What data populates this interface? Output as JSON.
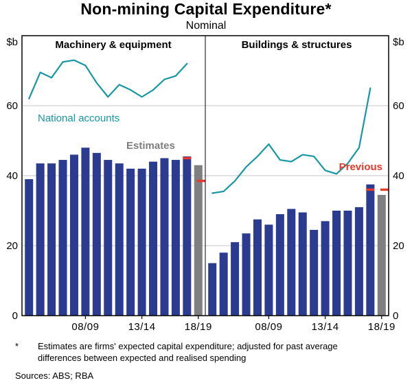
{
  "title": "Non-mining Capital Expenditure*",
  "subtitle": "Nominal",
  "unit_label": "$b",
  "footnote": {
    "marker": "*",
    "text": "Estimates are firms' expected capital expenditure; adjusted for past average differences between expected and realised spending"
  },
  "sources": "Sources: ABS; RBA",
  "colors": {
    "bar": "#2a3b90",
    "estimate_bar": "#7f7f7f",
    "line": "#1796a4",
    "previous": "#e8392d",
    "grid": "#c6c6c6",
    "frame": "#000000"
  },
  "axis": {
    "ymin": 0,
    "ymax": 80,
    "yticks": [
      0,
      20,
      40,
      60
    ],
    "gridlines": [
      20,
      40,
      60
    ],
    "xticks": {
      "positions": [
        5,
        10,
        15
      ],
      "labels": [
        "08/09",
        "13/14",
        "18/19"
      ]
    }
  },
  "chart_data": [
    {
      "type": "bar+line",
      "panel_title": "Machinery & equipment",
      "years": [
        "03/04",
        "04/05",
        "05/06",
        "06/07",
        "07/08",
        "08/09",
        "09/10",
        "10/11",
        "11/12",
        "12/13",
        "13/14",
        "14/15",
        "15/16",
        "16/17",
        "17/18",
        "18/19"
      ],
      "bar_series": {
        "name": "Capex survey",
        "values": [
          39,
          43.5,
          43.5,
          44.5,
          46,
          48,
          46.5,
          44.5,
          43.5,
          42,
          42,
          44,
          45,
          44.5,
          45.5,
          null
        ]
      },
      "estimate_bar": {
        "year": "18/19",
        "value": 43
      },
      "previous_estimates": [
        {
          "year": "17/18",
          "value": 45,
          "pos": 14
        },
        {
          "year": "18/19",
          "value": 38.5,
          "pos": 15.25
        }
      ],
      "line_series": {
        "name": "National accounts",
        "values": [
          62,
          69.5,
          68,
          72.5,
          73,
          71.5,
          66.5,
          62.5,
          66,
          64.5,
          62.5,
          64.5,
          67.5,
          68.5,
          72,
          null
        ]
      },
      "labels": {
        "line": "National accounts",
        "estimate": "Estimates"
      }
    },
    {
      "type": "bar+line",
      "panel_title": "Buildings & structures",
      "years": [
        "03/04",
        "04/05",
        "05/06",
        "06/07",
        "07/08",
        "08/09",
        "09/10",
        "10/11",
        "11/12",
        "12/13",
        "13/14",
        "14/15",
        "15/16",
        "16/17",
        "17/18",
        "18/19"
      ],
      "bar_series": {
        "name": "Capex survey",
        "values": [
          15,
          18,
          21,
          23.5,
          27.5,
          26,
          29,
          30.5,
          29.5,
          24.5,
          27,
          30,
          30,
          31,
          37.5,
          null
        ]
      },
      "estimate_bar": {
        "year": "18/19",
        "value": 34.5
      },
      "previous_estimates": [
        {
          "year": "17/18",
          "value": 36,
          "pos": 14
        },
        {
          "year": "18/19",
          "value": 36,
          "pos": 15.25
        }
      ],
      "line_series": {
        "name": "National accounts",
        "values": [
          35,
          35.5,
          38.5,
          42.5,
          45.5,
          49,
          44.5,
          44,
          46,
          45.5,
          41.5,
          40.5,
          43.5,
          48,
          65,
          null
        ]
      },
      "labels": {
        "previous": "Previous"
      }
    }
  ]
}
